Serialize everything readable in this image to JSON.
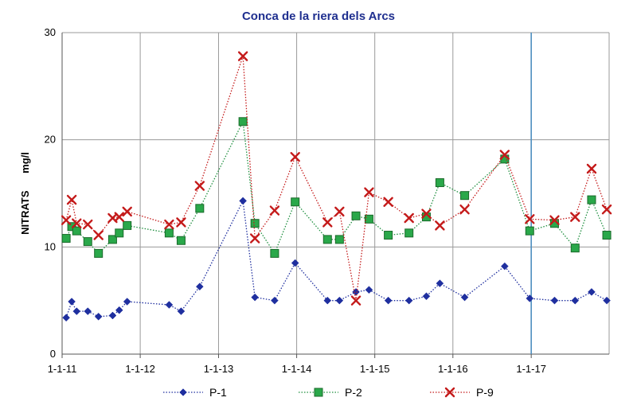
{
  "chart_data": {
    "type": "line",
    "title": "Conca de la riera dels Arcs",
    "ylabel": "NITRATS      mg/l",
    "xlabel": "",
    "ylim": [
      0,
      30
    ],
    "yticks": [
      0,
      10,
      20,
      30
    ],
    "xlim": [
      "2011-01-01",
      "2017-12-31"
    ],
    "xticks": [
      {
        "date": "2011-01-01",
        "label": "1-1-11"
      },
      {
        "date": "2012-01-01",
        "label": "1-1-12"
      },
      {
        "date": "2013-01-01",
        "label": "1-1-13"
      },
      {
        "date": "2014-01-01",
        "label": "1-1-14"
      },
      {
        "date": "2015-01-01",
        "label": "1-1-15"
      },
      {
        "date": "2016-01-01",
        "label": "1-1-16"
      },
      {
        "date": "2017-01-01",
        "label": "1-1-17"
      }
    ],
    "grid": true,
    "legend_position": "bottom",
    "reference_line": {
      "date": "2017-01-01",
      "color": "#4f8fc0"
    },
    "series": [
      {
        "name": "P-1",
        "color": "#1f2f9f",
        "marker": "diamond",
        "points": [
          [
            "2011-01-20",
            3.4
          ],
          [
            "2011-02-15",
            4.9
          ],
          [
            "2011-03-10",
            4.0
          ],
          [
            "2011-05-01",
            4.0
          ],
          [
            "2011-06-20",
            3.5
          ],
          [
            "2011-08-25",
            3.6
          ],
          [
            "2011-09-25",
            4.1
          ],
          [
            "2011-11-01",
            4.9
          ],
          [
            "2012-05-15",
            4.6
          ],
          [
            "2012-07-10",
            4.0
          ],
          [
            "2012-10-05",
            6.3
          ],
          [
            "2013-04-25",
            14.3
          ],
          [
            "2013-06-20",
            5.3
          ],
          [
            "2013-09-20",
            5.0
          ],
          [
            "2013-12-25",
            8.5
          ],
          [
            "2014-05-25",
            5.0
          ],
          [
            "2014-07-20",
            5.0
          ],
          [
            "2014-10-05",
            5.8
          ],
          [
            "2014-12-05",
            6.0
          ],
          [
            "2015-03-05",
            5.0
          ],
          [
            "2015-06-10",
            5.0
          ],
          [
            "2015-08-30",
            5.4
          ],
          [
            "2015-11-01",
            6.6
          ],
          [
            "2016-02-25",
            5.3
          ],
          [
            "2016-08-30",
            8.2
          ],
          [
            "2016-12-25",
            5.2
          ],
          [
            "2017-04-20",
            5.0
          ],
          [
            "2017-07-25",
            5.0
          ],
          [
            "2017-10-10",
            5.8
          ],
          [
            "2017-12-20",
            5.0
          ]
        ]
      },
      {
        "name": "P-2",
        "color": "#1f8f3f",
        "marker": "square",
        "points": [
          [
            "2011-01-20",
            10.8
          ],
          [
            "2011-02-15",
            11.9
          ],
          [
            "2011-03-10",
            11.5
          ],
          [
            "2011-05-01",
            10.5
          ],
          [
            "2011-06-20",
            9.4
          ],
          [
            "2011-08-25",
            10.7
          ],
          [
            "2011-09-25",
            11.3
          ],
          [
            "2011-11-01",
            12.0
          ],
          [
            "2012-05-15",
            11.3
          ],
          [
            "2012-07-10",
            10.6
          ],
          [
            "2012-10-05",
            13.6
          ],
          [
            "2013-04-25",
            21.7
          ],
          [
            "2013-06-20",
            12.2
          ],
          [
            "2013-09-20",
            9.4
          ],
          [
            "2013-12-25",
            14.2
          ],
          [
            "2014-05-25",
            10.7
          ],
          [
            "2014-07-20",
            10.7
          ],
          [
            "2014-10-05",
            12.9
          ],
          [
            "2014-12-05",
            12.6
          ],
          [
            "2015-03-05",
            11.1
          ],
          [
            "2015-06-10",
            11.3
          ],
          [
            "2015-08-30",
            12.8
          ],
          [
            "2015-11-01",
            16.0
          ],
          [
            "2016-02-25",
            14.8
          ],
          [
            "2016-08-30",
            18.2
          ],
          [
            "2016-12-25",
            11.5
          ],
          [
            "2017-04-20",
            12.2
          ],
          [
            "2017-07-25",
            9.9
          ],
          [
            "2017-10-10",
            14.4
          ],
          [
            "2017-12-20",
            11.1
          ]
        ]
      },
      {
        "name": "P-9",
        "color": "#c41a1a",
        "marker": "x",
        "points": [
          [
            "2011-01-20",
            12.5
          ],
          [
            "2011-02-15",
            14.4
          ],
          [
            "2011-03-10",
            12.2
          ],
          [
            "2011-05-01",
            12.1
          ],
          [
            "2011-06-20",
            11.1
          ],
          [
            "2011-08-25",
            12.7
          ],
          [
            "2011-09-25",
            12.8
          ],
          [
            "2011-11-01",
            13.3
          ],
          [
            "2012-05-15",
            12.1
          ],
          [
            "2012-07-10",
            12.3
          ],
          [
            "2012-10-05",
            15.7
          ],
          [
            "2013-04-25",
            27.8
          ],
          [
            "2013-06-20",
            10.8
          ],
          [
            "2013-09-20",
            13.4
          ],
          [
            "2013-12-25",
            18.4
          ],
          [
            "2014-05-25",
            12.3
          ],
          [
            "2014-07-20",
            13.3
          ],
          [
            "2014-10-05",
            5.0
          ],
          [
            "2014-12-05",
            15.1
          ],
          [
            "2015-03-05",
            14.2
          ],
          [
            "2015-06-10",
            12.7
          ],
          [
            "2015-08-30",
            13.1
          ],
          [
            "2015-11-01",
            12.0
          ],
          [
            "2016-02-25",
            13.5
          ],
          [
            "2016-08-30",
            18.6
          ],
          [
            "2016-12-25",
            12.6
          ],
          [
            "2017-04-20",
            12.5
          ],
          [
            "2017-07-25",
            12.8
          ],
          [
            "2017-10-10",
            17.3
          ],
          [
            "2017-12-20",
            13.5
          ]
        ]
      }
    ]
  }
}
